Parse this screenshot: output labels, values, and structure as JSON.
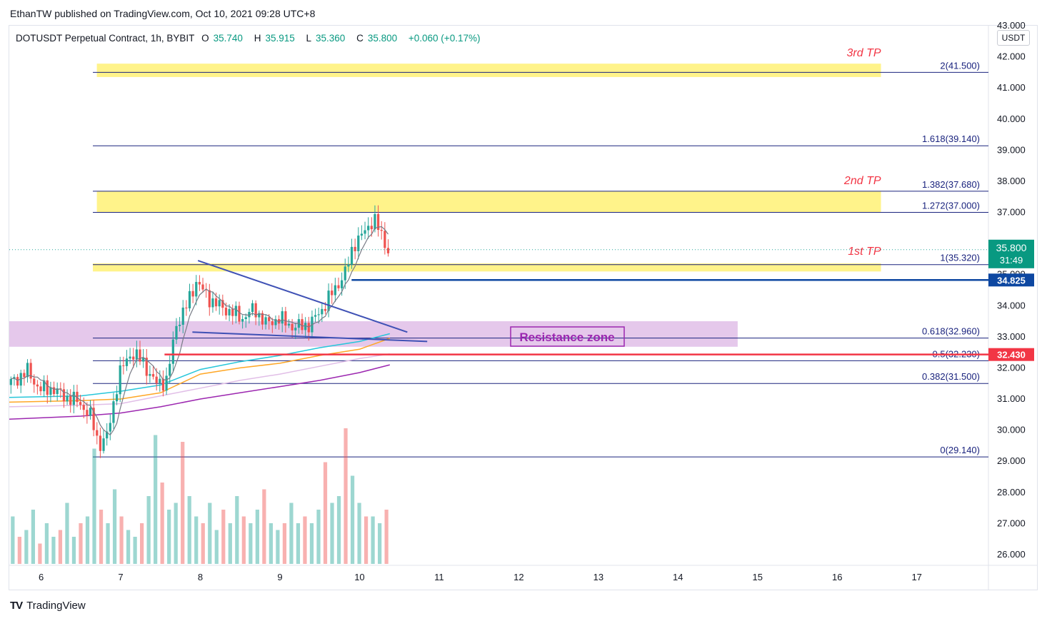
{
  "published_by": "EthanTW published on TradingView.com, Oct 10, 2021 09:28 UTC+8",
  "header": {
    "symbol": "DOTUSDT Perpetual Contract, 1h, BYBIT",
    "open_label": "O",
    "open": "35.740",
    "high_label": "H",
    "high": "35.915",
    "low_label": "L",
    "low": "35.360",
    "close_label": "C",
    "close": "35.800",
    "change": "+0.060 (+0.17%)"
  },
  "currency": "USDT",
  "footer": {
    "brand": "TradingView",
    "icon": "tradingview-logo-icon"
  },
  "colors": {
    "up": "#26a69a",
    "down": "#ef5350",
    "tp_zone": "#fff176",
    "resistance_zone": "#e1bee7",
    "fib_line": "#1a237e",
    "support_line": "#0d47a1",
    "red_line": "#f23645"
  },
  "chart_data": {
    "type": "candlestick",
    "y_range": [
      25.7,
      43.0
    ],
    "x_range": [
      5.6,
      17.9
    ],
    "x_ticks": [
      {
        "label": "6",
        "x": 6
      },
      {
        "label": "7",
        "x": 7
      },
      {
        "label": "8",
        "x": 8
      },
      {
        "label": "9",
        "x": 9
      },
      {
        "label": "10",
        "x": 10
      },
      {
        "label": "11",
        "x": 11
      },
      {
        "label": "12",
        "x": 12
      },
      {
        "label": "13",
        "x": 13
      },
      {
        "label": "14",
        "x": 14
      },
      {
        "label": "15",
        "x": 15
      },
      {
        "label": "16",
        "x": 16
      },
      {
        "label": "17",
        "x": 17
      }
    ],
    "y_ticks": [
      "26.000",
      "27.000",
      "28.000",
      "29.000",
      "30.000",
      "31.000",
      "32.000",
      "33.000",
      "34.000",
      "35.000",
      "36.000",
      "37.000",
      "38.000",
      "39.000",
      "40.000",
      "41.000",
      "42.000",
      "43.000"
    ],
    "price_path": [
      [
        5.6,
        31.45
      ],
      [
        5.85,
        31.9
      ],
      [
        6.0,
        31.3
      ],
      [
        6.15,
        31.35
      ],
      [
        6.3,
        31.1
      ],
      [
        6.5,
        30.9
      ],
      [
        6.65,
        30.4
      ],
      [
        6.75,
        29.5
      ],
      [
        6.85,
        29.8
      ],
      [
        7.0,
        31.8
      ],
      [
        7.15,
        32.5
      ],
      [
        7.3,
        32.2
      ],
      [
        7.45,
        31.5
      ],
      [
        7.6,
        31.6
      ],
      [
        7.72,
        33.4
      ],
      [
        7.85,
        34.0
      ],
      [
        7.97,
        34.8
      ],
      [
        8.1,
        34.3
      ],
      [
        8.25,
        34.0
      ],
      [
        8.4,
        33.8
      ],
      [
        8.55,
        33.6
      ],
      [
        8.7,
        33.9
      ],
      [
        8.85,
        33.4
      ],
      [
        9.0,
        33.6
      ],
      [
        9.2,
        33.3
      ],
      [
        9.4,
        33.4
      ],
      [
        9.55,
        33.9
      ],
      [
        9.7,
        34.5
      ],
      [
        9.85,
        35.1
      ],
      [
        9.95,
        36.0
      ],
      [
        10.1,
        36.4
      ],
      [
        10.2,
        36.85
      ],
      [
        10.3,
        36.2
      ],
      [
        10.38,
        35.8
      ]
    ],
    "volume_heights": [
      0.35,
      0.2,
      0.25,
      0.4,
      0.15,
      0.3,
      0.2,
      0.25,
      0.45,
      0.2,
      0.3,
      0.35,
      0.85,
      0.4,
      0.3,
      0.55,
      0.35,
      0.25,
      0.2,
      0.3,
      0.5,
      0.95,
      0.6,
      0.4,
      0.45,
      0.9,
      0.5,
      0.35,
      0.3,
      0.45,
      0.25,
      0.4,
      0.3,
      0.5,
      0.35,
      0.3,
      0.4,
      0.55,
      0.3,
      0.25,
      0.3,
      0.45,
      0.3,
      0.35,
      0.3,
      0.4,
      0.75,
      0.45,
      0.5,
      1.0,
      0.65,
      0.45,
      0.35,
      0.35,
      0.3,
      0.4
    ],
    "tp_zones": [
      {
        "label": "3rd TP",
        "from": 41.35,
        "to": 41.78
      },
      {
        "label": "2nd TP",
        "from": 37.0,
        "to": 37.68
      },
      {
        "label": "1st TP",
        "from": 35.1,
        "to": 35.36
      }
    ],
    "resistance_zone": {
      "label": "Resistance zone",
      "from": 32.68,
      "to": 33.5
    },
    "fib_levels": [
      {
        "label": "2(41.500)",
        "value": 41.5
      },
      {
        "label": "1.618(39.140)",
        "value": 39.14
      },
      {
        "label": "1.382(37.680)",
        "value": 37.68
      },
      {
        "label": "1.272(37.000)",
        "value": 37.0
      },
      {
        "label": "1(35.320)",
        "value": 35.32
      },
      {
        "label": "0.618(32.960)",
        "value": 32.96
      },
      {
        "label": "0.5(32.230)",
        "value": 32.23
      },
      {
        "label": "0.382(31.500)",
        "value": 31.5
      },
      {
        "label": "0(29.140)",
        "value": 29.14
      }
    ],
    "horizontal_lines": [
      {
        "label": "34.825",
        "value": 34.825,
        "color": "#0d47a1"
      },
      {
        "label": "32.430",
        "value": 32.43,
        "color": "#f23645"
      }
    ],
    "last_price": {
      "value": 35.8,
      "label": "35.800",
      "countdown": "31:49"
    },
    "triangle": {
      "upper": [
        [
          7.97,
          35.45
        ],
        [
          10.6,
          33.15
        ]
      ],
      "lower": [
        [
          7.9,
          33.15
        ],
        [
          10.85,
          32.85
        ]
      ]
    }
  }
}
